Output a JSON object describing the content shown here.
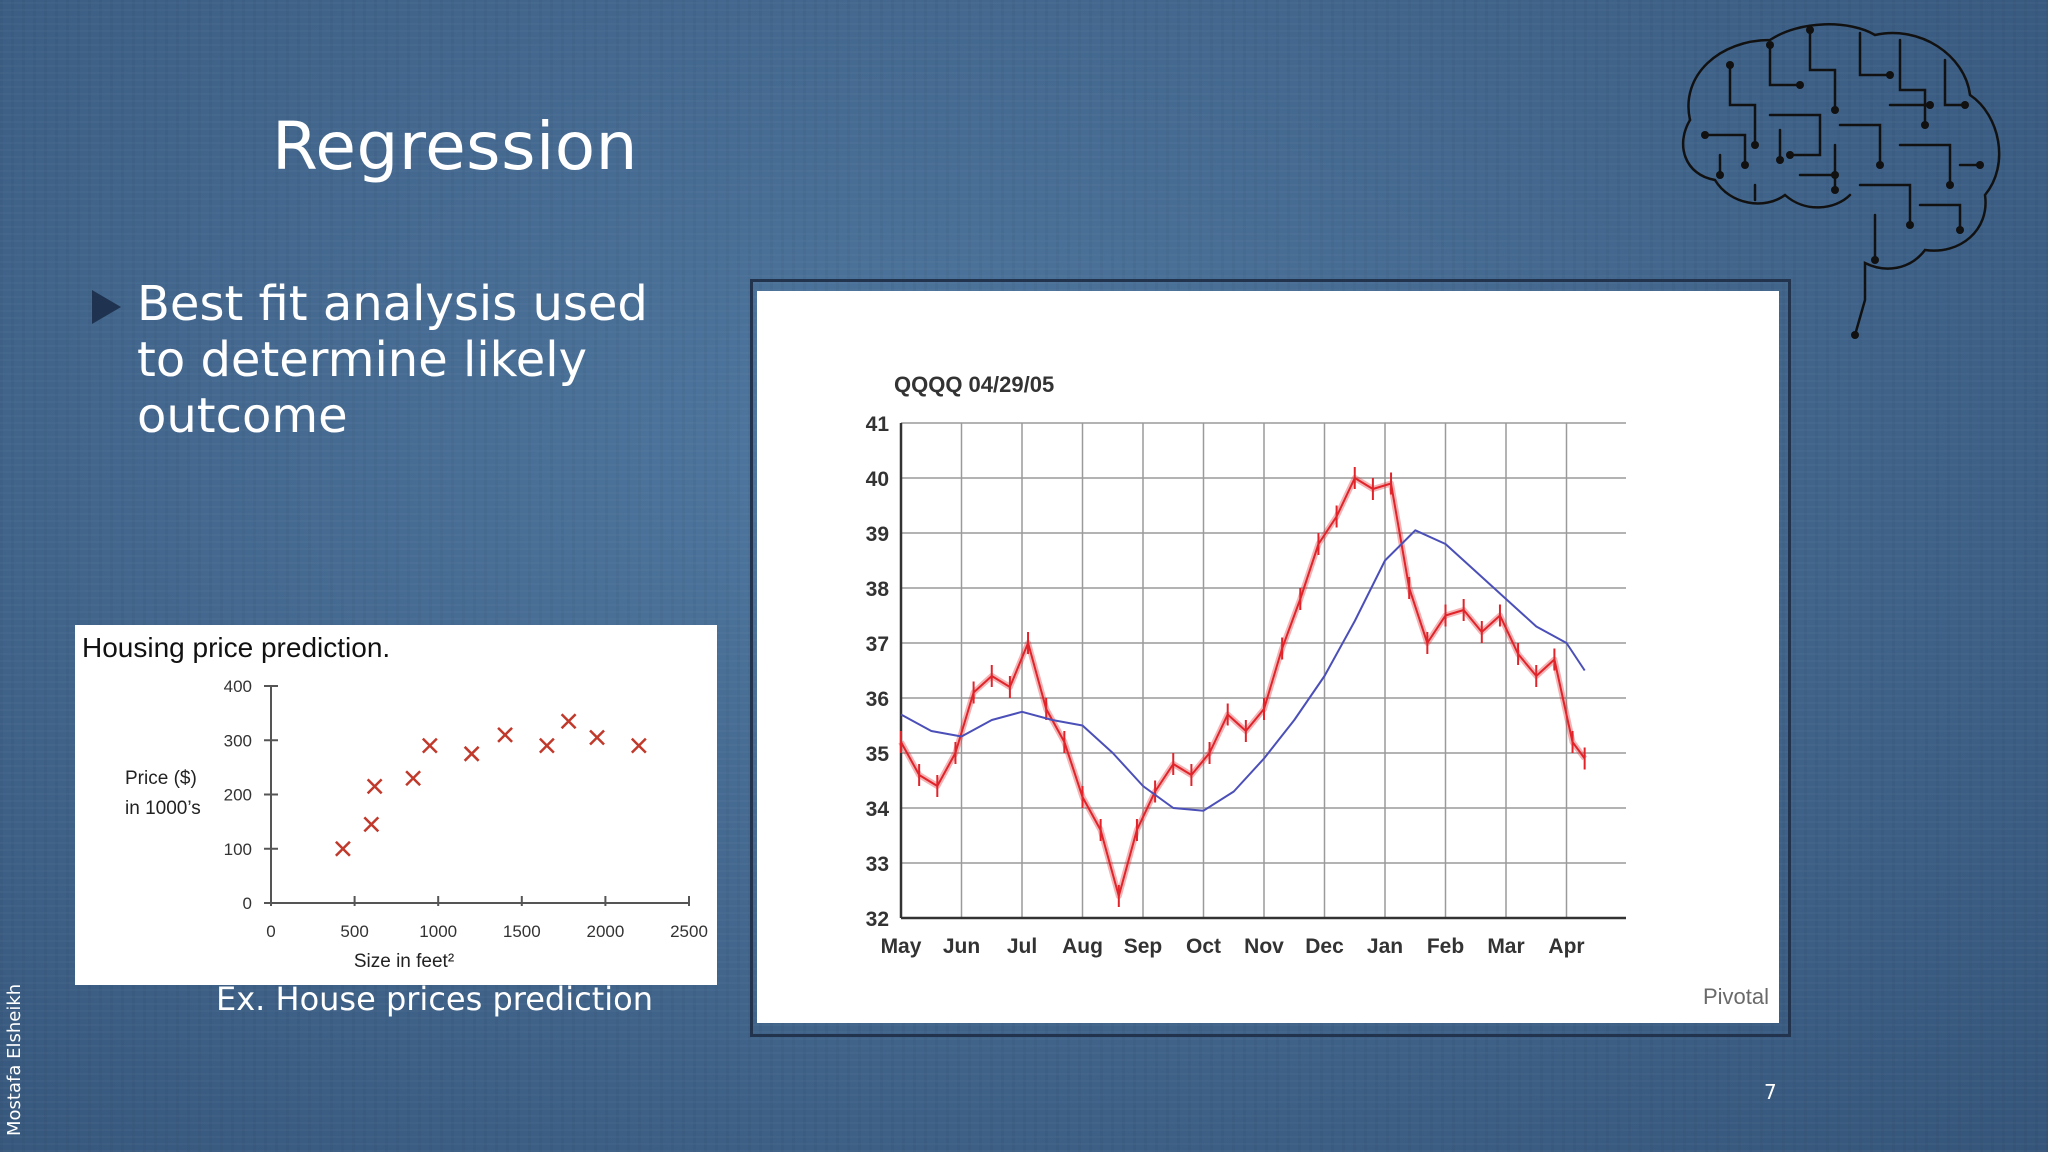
{
  "slide": {
    "title": "Regression",
    "bullet": "Best fit analysis used to determine likely outcome",
    "caption": "Ex. House prices prediction",
    "author": "Mostafa Elsheikh",
    "page_number": "7",
    "brain_icon": "circuit-brain-icon"
  },
  "housing": {
    "title": "Housing price prediction.",
    "ylabel_line1": "Price ($)",
    "ylabel_line2": "in 1000’s",
    "xlabel": "Size in feet²",
    "marker_color": "#c0392b"
  },
  "stock": {
    "title": "QQQQ 04/29/05",
    "brand": "Pivotal",
    "price_color": "#e0242a",
    "trend_color": "#4b4fb8"
  },
  "chart_data": [
    {
      "type": "scatter",
      "title": "Housing price prediction.",
      "xlabel": "Size in feet²",
      "ylabel": "Price ($) in 1000’s",
      "xlim": [
        0,
        2500
      ],
      "ylim": [
        0,
        400
      ],
      "xticks": [
        0,
        500,
        1000,
        1500,
        2000,
        2500
      ],
      "yticks": [
        0,
        100,
        200,
        300,
        400
      ],
      "marker": "x",
      "points": [
        {
          "x": 430,
          "y": 100
        },
        {
          "x": 600,
          "y": 145
        },
        {
          "x": 620,
          "y": 215
        },
        {
          "x": 850,
          "y": 230
        },
        {
          "x": 950,
          "y": 290
        },
        {
          "x": 1200,
          "y": 275
        },
        {
          "x": 1400,
          "y": 310
        },
        {
          "x": 1650,
          "y": 290
        },
        {
          "x": 1780,
          "y": 335
        },
        {
          "x": 1950,
          "y": 305
        },
        {
          "x": 2200,
          "y": 290
        }
      ]
    },
    {
      "type": "line",
      "title": "QQQQ 04/29/05",
      "categories": [
        "May",
        "Jun",
        "Jul",
        "Aug",
        "Sep",
        "Oct",
        "Nov",
        "Dec",
        "Jan",
        "Feb",
        "Mar",
        "Apr"
      ],
      "yticks": [
        32,
        33,
        34,
        35,
        36,
        37,
        38,
        39,
        40,
        41
      ],
      "ylim": [
        32,
        41
      ],
      "grid": true,
      "series": [
        {
          "style": "daily-range",
          "x": [
            0,
            0.3,
            0.6,
            0.9,
            1.2,
            1.5,
            1.8,
            2.1,
            2.4,
            2.7,
            3.0,
            3.3,
            3.6,
            3.9,
            4.2,
            4.5,
            4.8,
            5.1,
            5.4,
            5.7,
            6.0,
            6.3,
            6.6,
            6.9,
            7.2,
            7.5,
            7.8,
            8.1,
            8.4,
            8.7,
            9.0,
            9.3,
            9.6,
            9.9,
            10.2,
            10.5,
            10.8,
            11.1,
            11.3
          ],
          "values": [
            35.2,
            34.6,
            34.4,
            35.0,
            36.1,
            36.4,
            36.2,
            37.0,
            35.8,
            35.2,
            34.2,
            33.6,
            32.4,
            33.6,
            34.3,
            34.8,
            34.6,
            35.0,
            35.7,
            35.4,
            35.8,
            36.9,
            37.8,
            38.8,
            39.3,
            40.0,
            39.8,
            39.9,
            38.0,
            37.0,
            37.5,
            37.6,
            37.2,
            37.5,
            36.8,
            36.4,
            36.7,
            35.2,
            34.9
          ]
        },
        {
          "style": "moving-average",
          "x": [
            0,
            0.5,
            1.0,
            1.5,
            2.0,
            2.5,
            3.0,
            3.5,
            4.0,
            4.5,
            5.0,
            5.5,
            6.0,
            6.5,
            7.0,
            7.5,
            8.0,
            8.5,
            9.0,
            9.5,
            10.0,
            10.5,
            11.0,
            11.3
          ],
          "values": [
            35.7,
            35.4,
            35.3,
            35.6,
            35.75,
            35.6,
            35.5,
            35.0,
            34.4,
            34.0,
            33.95,
            34.3,
            34.9,
            35.6,
            36.4,
            37.4,
            38.5,
            39.05,
            38.8,
            38.3,
            37.8,
            37.3,
            37.0,
            36.5
          ]
        }
      ]
    }
  ]
}
